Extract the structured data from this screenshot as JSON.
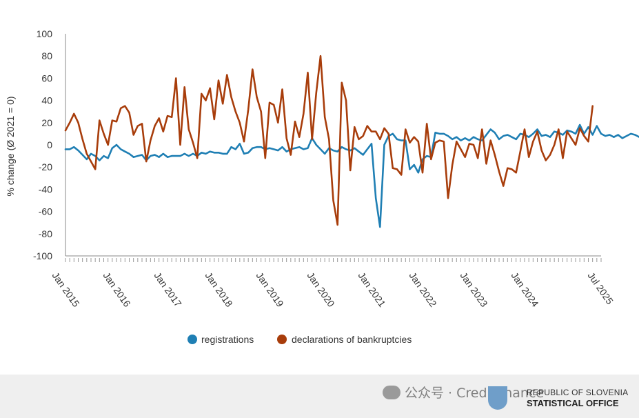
{
  "chart_data": {
    "type": "line",
    "ylabel": "% change (Ø 2021 = 0)",
    "ylim": [
      -100,
      100
    ],
    "yticks": [
      100,
      80,
      60,
      40,
      20,
      0,
      -20,
      -40,
      -60,
      -80,
      -100
    ],
    "xstart": "Jan 2015",
    "xlabels": [
      "Jan 2015",
      "Jan 2016",
      "Jan 2017",
      "Jan 2018",
      "Jan 2019",
      "Jan 2020",
      "Jan 2021",
      "Jan 2022",
      "Jan 2023",
      "Jan 2024",
      "Jul 2025"
    ],
    "grid": false,
    "legend_position": "bottom",
    "series": [
      {
        "name": "registrations",
        "color": "#1f7fb4",
        "values": [
          -4,
          -4,
          -2,
          -5,
          -9,
          -13,
          -8,
          -10,
          -14,
          -10,
          -12,
          -3,
          0,
          -4,
          -6,
          -8,
          -11,
          -10,
          -9,
          -14,
          -10,
          -9,
          -11,
          -8,
          -11,
          -10,
          -10,
          -10,
          -8,
          -10,
          -8,
          -10,
          -7,
          -8,
          -6,
          -7,
          -7,
          -8,
          -8,
          -2,
          -4,
          1,
          -8,
          -7,
          -3,
          -2,
          -2,
          -4,
          -3,
          -4,
          -5,
          -2,
          -6,
          -4,
          -3,
          -2,
          -4,
          -3,
          6,
          0,
          -4,
          -8,
          -3,
          -5,
          -6,
          -2,
          -4,
          -5,
          -3,
          -6,
          -9,
          -4,
          1,
          -48,
          -74,
          0,
          8,
          10,
          5,
          4,
          4,
          -22,
          -18,
          -25,
          -13,
          -10,
          -11,
          11,
          10,
          10,
          8,
          5,
          7,
          4,
          6,
          4,
          7,
          5,
          4,
          9,
          14,
          11,
          5,
          8,
          9,
          7,
          5,
          10,
          9,
          7,
          10,
          14,
          8,
          9,
          7,
          12,
          11,
          9,
          13,
          12,
          10,
          18,
          10,
          16,
          9,
          17,
          10,
          8,
          9,
          7,
          9,
          6,
          8,
          10,
          9,
          7,
          9,
          12,
          9,
          8,
          8,
          9,
          6
        ]
      },
      {
        "name": "declarations of bankruptcies",
        "color": "#a83d0b",
        "values": [
          13,
          20,
          28,
          20,
          5,
          -8,
          -15,
          -22,
          22,
          10,
          0,
          22,
          21,
          33,
          35,
          29,
          9,
          17,
          19,
          -15,
          4,
          17,
          24,
          12,
          26,
          25,
          60,
          0,
          52,
          14,
          2,
          -12,
          46,
          40,
          51,
          23,
          58,
          37,
          63,
          43,
          30,
          20,
          3,
          32,
          68,
          43,
          30,
          -12,
          38,
          36,
          20,
          50,
          6,
          -9,
          21,
          7,
          28,
          65,
          5,
          47,
          80,
          25,
          5,
          -50,
          -72,
          56,
          40,
          -23,
          16,
          5,
          8,
          17,
          12,
          12,
          5,
          15,
          10,
          -21,
          -22,
          -27,
          14,
          2,
          7,
          3,
          -25,
          19,
          -13,
          2,
          4,
          3,
          -48,
          -18,
          3,
          -4,
          -11,
          1,
          0,
          -12,
          14,
          -17,
          4,
          -9,
          -24,
          -37,
          -21,
          -22,
          -25,
          -6,
          14,
          -11,
          3,
          12,
          -5,
          -14,
          -9,
          0,
          14,
          -12,
          12,
          6,
          0,
          15,
          8,
          3,
          35
        ]
      }
    ]
  },
  "watermark": {
    "text": "公众号 · Creditfinance"
  },
  "logo": {
    "line1": "REPUBLIC OF SLOVENIA",
    "line2": "STATISTICAL OFFICE"
  }
}
